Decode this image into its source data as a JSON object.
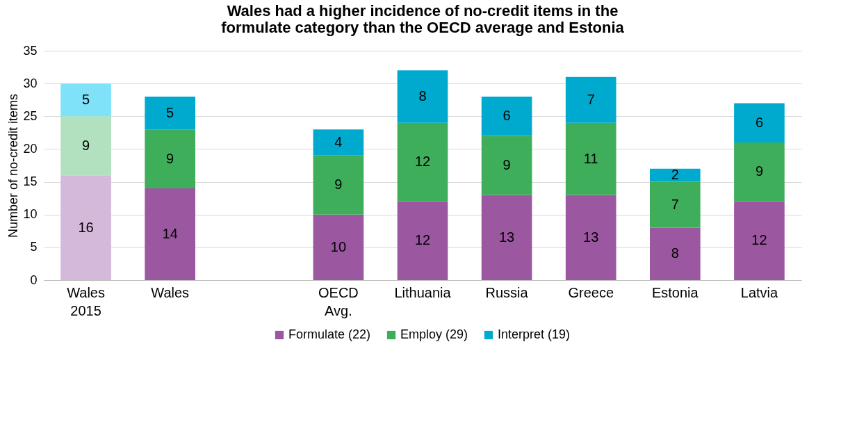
{
  "chart_data": {
    "type": "bar",
    "stacked": true,
    "title": "Wales had a higher incidence of no-credit items in the formulate category than the OECD average and Estonia",
    "ylabel": "Number of no-credit items",
    "categories": [
      "Wales 2015",
      "Wales",
      null,
      "OECD Avg.",
      "Lithuania",
      "Russia",
      "Greece",
      "Estonia",
      "Latvia"
    ],
    "series": [
      {
        "name": "Formulate (22)",
        "color": "#9b57a0",
        "colors": [
          "#d5b9db",
          "#9b57a0",
          null,
          "#9b57a0",
          "#9b57a0",
          "#9b57a0",
          "#9b57a0",
          "#9b57a0",
          "#9b57a0"
        ],
        "values": [
          16,
          14,
          null,
          10,
          12,
          13,
          13,
          8,
          12
        ]
      },
      {
        "name": "Employ (29)",
        "color": "#3fae5b",
        "colors": [
          "#b1e1bf",
          "#3fae5b",
          null,
          "#3fae5b",
          "#3fae5b",
          "#3fae5b",
          "#3fae5b",
          "#3fae5b",
          "#3fae5b"
        ],
        "values": [
          9,
          9,
          null,
          9,
          12,
          9,
          11,
          7,
          9
        ]
      },
      {
        "name": "Interpret (19)",
        "color": "#00aacf",
        "colors": [
          "#80e2f8",
          "#00aacf",
          null,
          "#00aacf",
          "#00aacf",
          "#00aacf",
          "#00aacf",
          "#00aacf",
          "#00aacf"
        ],
        "values": [
          5,
          5,
          null,
          4,
          8,
          6,
          7,
          2,
          6
        ]
      }
    ],
    "ylim": [
      0,
      35
    ],
    "yticks": [
      0,
      5,
      10,
      15,
      20,
      25,
      30,
      35
    ],
    "grid": "y",
    "legend": "bottom",
    "data_labels": true
  }
}
